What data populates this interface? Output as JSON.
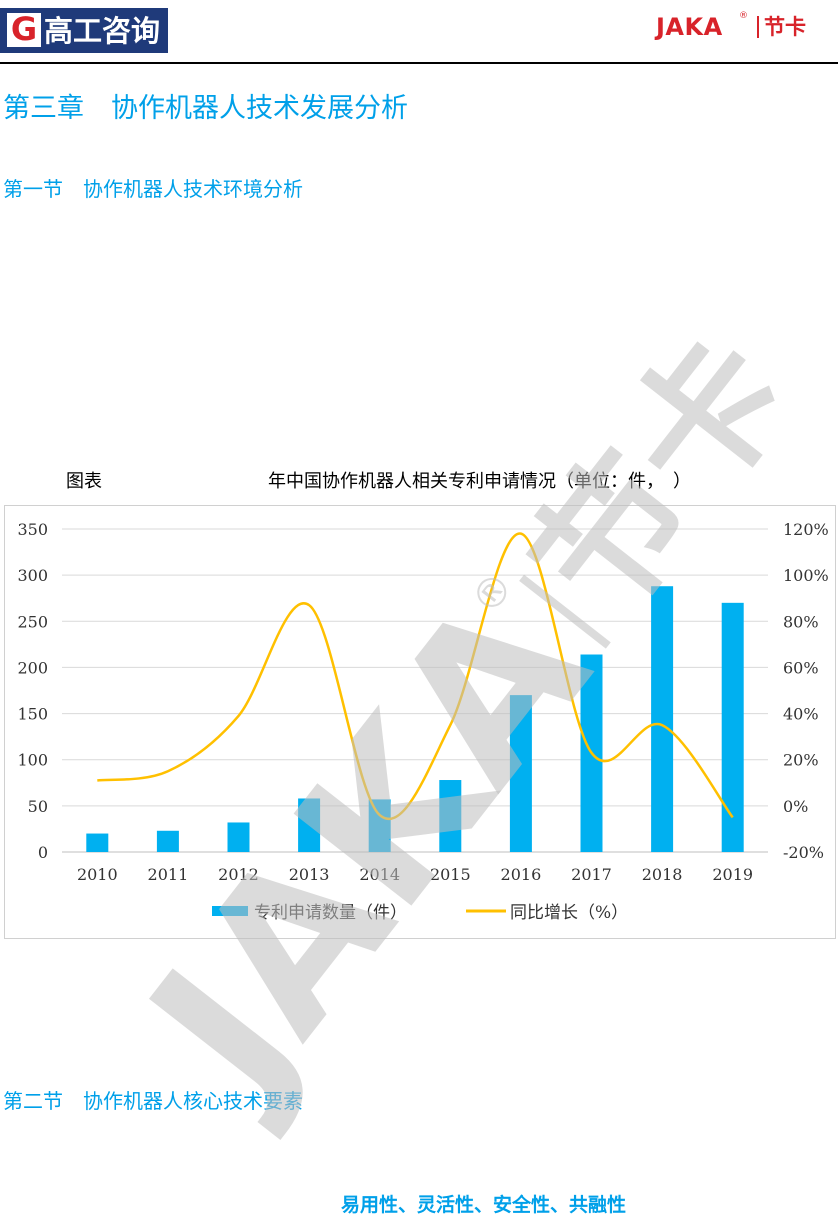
{
  "header": {
    "left_logo_letter": "G",
    "left_logo_text": "高工咨询",
    "right_logo_word": "JAKA",
    "right_logo_reg": "®",
    "right_logo_cn": "节卡"
  },
  "chapter_title": "第三章　协作机器人技术发展分析",
  "section1_title": "第一节　协作机器人技术环境分析",
  "chart_caption": {
    "label": "图表",
    "title": "年中国协作机器人相关专利申请情况（单位：件，　）"
  },
  "chart_data": {
    "type": "bar",
    "categories": [
      "2010",
      "2011",
      "2012",
      "2013",
      "2014",
      "2015",
      "2016",
      "2017",
      "2018",
      "2019"
    ],
    "series": [
      {
        "name": "专利申请数量（件）",
        "type": "bar",
        "axis": "left",
        "values": [
          20,
          23,
          32,
          58,
          57,
          78,
          170,
          214,
          288,
          270
        ]
      },
      {
        "name": "同比增长（%）",
        "type": "line",
        "axis": "right",
        "smooth": true,
        "values": [
          11,
          15,
          39,
          87,
          -4,
          35,
          118,
          23,
          35,
          -5
        ]
      }
    ],
    "y_left": {
      "min": 0,
      "max": 350,
      "step": 50,
      "ticks": [
        "0",
        "50",
        "100",
        "150",
        "200",
        "250",
        "300",
        "350"
      ]
    },
    "y_right": {
      "min": -20,
      "max": 120,
      "step": 20,
      "ticks": [
        "-20%",
        "0%",
        "20%",
        "40%",
        "60%",
        "80%",
        "100%",
        "120%"
      ]
    },
    "grid": true,
    "legend": "bottom",
    "colors": {
      "bar": "#00b0f0",
      "line": "#ffc000"
    }
  },
  "section2_title": "第二节　协作机器人核心技术要素",
  "keywords": "易用性、灵活性、安全性、共融性",
  "watermark": {
    "word": "JAKA",
    "reg": "®",
    "cn": "节卡"
  }
}
